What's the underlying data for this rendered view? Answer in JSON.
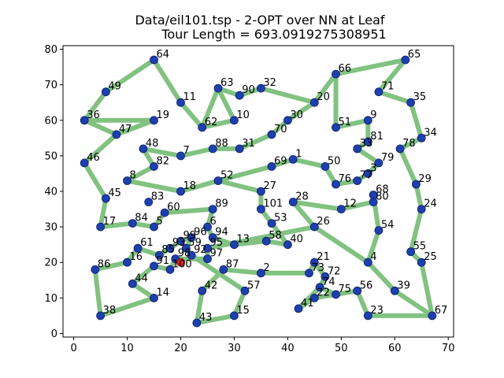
{
  "chart_data": {
    "type": "line",
    "title_lines": [
      "Data/eil101.tsp - 2-OPT over NN at Leaf",
      "Tour Length = 693.0919275308951"
    ],
    "xlim": [
      -2,
      71
    ],
    "ylim": [
      -1,
      81
    ],
    "x_ticks": [
      0,
      10,
      20,
      30,
      40,
      50,
      60,
      70
    ],
    "y_ticks": [
      0,
      10,
      20,
      30,
      40,
      50,
      60,
      70,
      80
    ],
    "grid": false,
    "colors": {
      "tour": "#81c281",
      "city": "#1f3fae",
      "city_edge": "#0a1f6e",
      "start": "#d62020"
    },
    "start_point": [
      20,
      20
    ],
    "cities": [
      {
        "id": "1",
        "x": 41,
        "y": 49
      },
      {
        "id": "2",
        "x": 35,
        "y": 17
      },
      {
        "id": "3",
        "x": 55,
        "y": 45
      },
      {
        "id": "4",
        "x": 55,
        "y": 20
      },
      {
        "id": "5",
        "x": 15,
        "y": 30
      },
      {
        "id": "6",
        "x": 25,
        "y": 30
      },
      {
        "id": "7",
        "x": 20,
        "y": 50
      },
      {
        "id": "8",
        "x": 10,
        "y": 43
      },
      {
        "id": "9",
        "x": 55,
        "y": 60
      },
      {
        "id": "10",
        "x": 30,
        "y": 60
      },
      {
        "id": "11",
        "x": 20,
        "y": 65
      },
      {
        "id": "12",
        "x": 50,
        "y": 35
      },
      {
        "id": "13",
        "x": 30,
        "y": 25
      },
      {
        "id": "14",
        "x": 15,
        "y": 10
      },
      {
        "id": "15",
        "x": 30,
        "y": 5
      },
      {
        "id": "16",
        "x": 10,
        "y": 20
      },
      {
        "id": "17",
        "x": 5,
        "y": 30
      },
      {
        "id": "18",
        "x": 20,
        "y": 40
      },
      {
        "id": "19",
        "x": 15,
        "y": 60
      },
      {
        "id": "20",
        "x": 45,
        "y": 65
      },
      {
        "id": "21",
        "x": 45,
        "y": 20
      },
      {
        "id": "22",
        "x": 45,
        "y": 10
      },
      {
        "id": "23",
        "x": 55,
        "y": 5
      },
      {
        "id": "24",
        "x": 65,
        "y": 35
      },
      {
        "id": "25",
        "x": 65,
        "y": 20
      },
      {
        "id": "26",
        "x": 45,
        "y": 30
      },
      {
        "id": "27",
        "x": 35,
        "y": 40
      },
      {
        "id": "28",
        "x": 41,
        "y": 37
      },
      {
        "id": "29",
        "x": 64,
        "y": 42
      },
      {
        "id": "30",
        "x": 40,
        "y": 60
      },
      {
        "id": "31",
        "x": 31,
        "y": 52
      },
      {
        "id": "32",
        "x": 35,
        "y": 69
      },
      {
        "id": "33",
        "x": 53,
        "y": 52
      },
      {
        "id": "34",
        "x": 65,
        "y": 55
      },
      {
        "id": "35",
        "x": 63,
        "y": 65
      },
      {
        "id": "36",
        "x": 2,
        "y": 60
      },
      {
        "id": "38",
        "x": 5,
        "y": 5
      },
      {
        "id": "39",
        "x": 60,
        "y": 12
      },
      {
        "id": "40",
        "x": 40,
        "y": 25
      },
      {
        "id": "41",
        "x": 42,
        "y": 7
      },
      {
        "id": "42",
        "x": 24,
        "y": 12
      },
      {
        "id": "43",
        "x": 23,
        "y": 3
      },
      {
        "id": "44",
        "x": 11,
        "y": 14
      },
      {
        "id": "45",
        "x": 6,
        "y": 38
      },
      {
        "id": "46",
        "x": 2,
        "y": 48
      },
      {
        "id": "47",
        "x": 8,
        "y": 56
      },
      {
        "id": "48",
        "x": 13,
        "y": 52
      },
      {
        "id": "49",
        "x": 6,
        "y": 68
      },
      {
        "id": "50",
        "x": 47,
        "y": 47
      },
      {
        "id": "51",
        "x": 49,
        "y": 58
      },
      {
        "id": "52",
        "x": 27,
        "y": 43
      },
      {
        "id": "53",
        "x": 37,
        "y": 31
      },
      {
        "id": "54",
        "x": 57,
        "y": 29
      },
      {
        "id": "55",
        "x": 63,
        "y": 23
      },
      {
        "id": "56",
        "x": 53,
        "y": 12
      },
      {
        "id": "57",
        "x": 32,
        "y": 12
      },
      {
        "id": "58",
        "x": 36,
        "y": 26
      },
      {
        "id": "59",
        "x": 21,
        "y": 24
      },
      {
        "id": "60",
        "x": 17,
        "y": 34
      },
      {
        "id": "61",
        "x": 12,
        "y": 24
      },
      {
        "id": "62",
        "x": 24,
        "y": 58
      },
      {
        "id": "63",
        "x": 27,
        "y": 69
      },
      {
        "id": "64",
        "x": 15,
        "y": 77
      },
      {
        "id": "65",
        "x": 62,
        "y": 77
      },
      {
        "id": "66",
        "x": 49,
        "y": 73
      },
      {
        "id": "67",
        "x": 67,
        "y": 5
      },
      {
        "id": "68",
        "x": 56,
        "y": 39
      },
      {
        "id": "69",
        "x": 37,
        "y": 47
      },
      {
        "id": "70",
        "x": 37,
        "y": 56
      },
      {
        "id": "71",
        "x": 57,
        "y": 68
      },
      {
        "id": "72",
        "x": 47,
        "y": 16
      },
      {
        "id": "73",
        "x": 44,
        "y": 17
      },
      {
        "id": "74",
        "x": 46,
        "y": 13
      },
      {
        "id": "75",
        "x": 49,
        "y": 11
      },
      {
        "id": "76",
        "x": 49,
        "y": 42
      },
      {
        "id": "77",
        "x": 53,
        "y": 43
      },
      {
        "id": "78",
        "x": 61,
        "y": 52
      },
      {
        "id": "79",
        "x": 57,
        "y": 48
      },
      {
        "id": "80",
        "x": 56,
        "y": 37
      },
      {
        "id": "81",
        "x": 55,
        "y": 54
      },
      {
        "id": "82",
        "x": 15,
        "y": 47
      },
      {
        "id": "83",
        "x": 14,
        "y": 37
      },
      {
        "id": "84",
        "x": 11,
        "y": 31
      },
      {
        "id": "85",
        "x": 16,
        "y": 22
      },
      {
        "id": "86",
        "x": 4,
        "y": 18
      },
      {
        "id": "87",
        "x": 28,
        "y": 18
      },
      {
        "id": "88",
        "x": 26,
        "y": 52
      },
      {
        "id": "89",
        "x": 26,
        "y": 35
      },
      {
        "id": "90",
        "x": 31,
        "y": 67
      },
      {
        "id": "91",
        "x": 15,
        "y": 19
      },
      {
        "id": "92",
        "x": 22,
        "y": 22
      },
      {
        "id": "93",
        "x": 18,
        "y": 24
      },
      {
        "id": "94",
        "x": 26,
        "y": 27
      },
      {
        "id": "95",
        "x": 25,
        "y": 24
      },
      {
        "id": "96",
        "x": 22,
        "y": 27
      },
      {
        "id": "97",
        "x": 25,
        "y": 21
      },
      {
        "id": "98",
        "x": 19,
        "y": 21
      },
      {
        "id": "99",
        "x": 20,
        "y": 26
      },
      {
        "id": "100",
        "x": 18,
        "y": 18
      },
      {
        "id": "101",
        "x": 35,
        "y": 35
      }
    ],
    "tour_order": [
      "64",
      "11",
      "62",
      "63",
      "90",
      "32",
      "20",
      "30",
      "70",
      "31",
      "88",
      "7",
      "48",
      "82",
      "8",
      "18",
      "52",
      "27",
      "101",
      "53",
      "40",
      "58",
      "13",
      "94",
      "6",
      "89",
      "60",
      "5",
      "84",
      "17",
      "45",
      "46",
      "47",
      "36",
      "49",
      "64"
    ],
    "tour_segments": [
      [
        "36",
        "19",
        "47"
      ],
      [
        "19",
        "47"
      ],
      [
        "62",
        "10",
        "63"
      ],
      [
        "20",
        "66",
        "51"
      ],
      [
        "51",
        "9",
        "81",
        "33",
        "79",
        "3",
        "77",
        "76",
        "50",
        "1",
        "69",
        "52"
      ],
      [
        "66",
        "65",
        "71",
        "35",
        "34",
        "78",
        "29",
        "24",
        "55",
        "25",
        "67",
        "23",
        "56",
        "75",
        "74",
        "72",
        "21",
        "73",
        "2",
        "87",
        "42",
        "43",
        "15",
        "57",
        "92",
        "59",
        "96",
        "99",
        "93",
        "85",
        "61",
        "16",
        "86",
        "38",
        "14",
        "44",
        "91",
        "100",
        "98",
        "97",
        "95",
        "26",
        "28",
        "12",
        "80",
        "68",
        "54",
        "4",
        "39",
        "67"
      ],
      [
        "26",
        "4"
      ],
      [
        "75",
        "22",
        "41",
        "74"
      ]
    ]
  }
}
